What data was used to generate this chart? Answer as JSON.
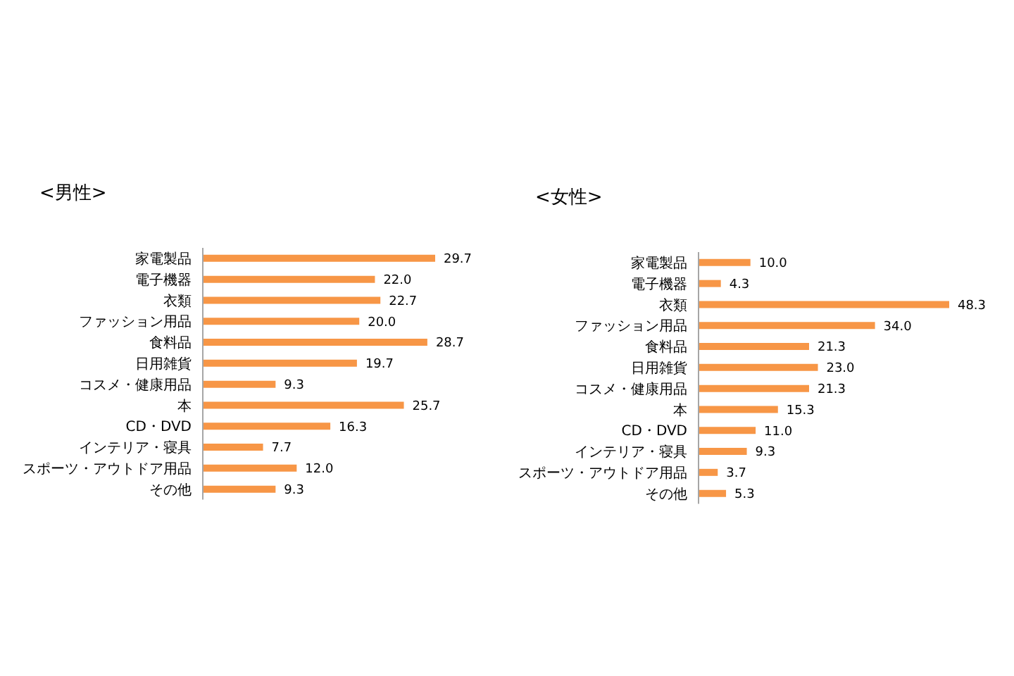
{
  "chart_data": [
    {
      "type": "bar",
      "orientation": "horizontal",
      "title": "<男性>",
      "categories": [
        "家電製品",
        "電子機器",
        "衣類",
        "ファッション用品",
        "食料品",
        "日用雑貨",
        "コスメ・健康用品",
        "本",
        "CD・DVD",
        "インテリア・寝具",
        "スポーツ・アウトドア用品",
        "その他"
      ],
      "values": [
        29.7,
        22.0,
        22.7,
        20.0,
        28.7,
        19.7,
        9.3,
        25.7,
        16.3,
        7.7,
        12.0,
        9.3
      ],
      "value_labels": [
        "29.7",
        "22.0",
        "22.7",
        "20.0",
        "28.7",
        "19.7",
        "9.3",
        "25.7",
        "16.3",
        "7.7",
        "12.0",
        "9.3"
      ],
      "color": "#f79646"
    },
    {
      "type": "bar",
      "orientation": "horizontal",
      "title": "<女性>",
      "categories": [
        "家電製品",
        "電子機器",
        "衣類",
        "ファッション用品",
        "食料品",
        "日用雑貨",
        "コスメ・健康用品",
        "本",
        "CD・DVD",
        "インテリア・寝具",
        "スポーツ・アウトドア用品",
        "その他"
      ],
      "values": [
        10.0,
        4.3,
        48.3,
        34.0,
        21.3,
        23.0,
        21.3,
        15.3,
        11.0,
        9.3,
        3.7,
        5.3
      ],
      "value_labels": [
        "10.0",
        "4.3",
        "48.3",
        "34.0",
        "21.3",
        "23.0",
        "21.3",
        "15.3",
        "11.0",
        "9.3",
        "3.7",
        "5.3"
      ],
      "color": "#f79646"
    }
  ]
}
